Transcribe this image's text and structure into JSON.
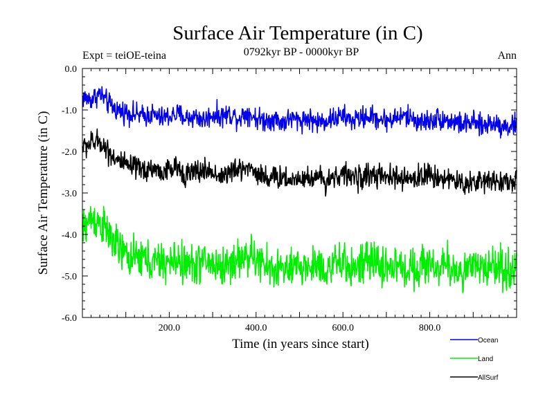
{
  "chart_data": {
    "type": "line",
    "title": "Surface Air Temperature (in C)",
    "subtitle": "0792kyr BP - 0000kyr BP",
    "left_label": "Expt = teiOE-teina",
    "right_label": "Ann",
    "xlabel": "Time (in years since start)",
    "ylabel": "Surface Air Temperature (in C)",
    "xlim": [
      0,
      1000
    ],
    "ylim": [
      -6.0,
      0.0
    ],
    "xticks": [
      200,
      400,
      600,
      800
    ],
    "xtick_labels": [
      "200.0",
      "400.0",
      "600.0",
      "800.0"
    ],
    "yticks": [
      0,
      -1,
      -2,
      -3,
      -4,
      -5,
      -6
    ],
    "ytick_labels": [
      "0.0",
      "-1.0",
      "-2.0",
      "-3.0",
      "-4.0",
      "-5.0",
      "-6.0"
    ],
    "legend_position": "bottom-right, below plot",
    "series": [
      {
        "name": "Ocean",
        "color": "#0000ee",
        "points_every_years": 20,
        "x": [
          0,
          20,
          40,
          60,
          80,
          100,
          120,
          140,
          160,
          180,
          200,
          220,
          240,
          260,
          280,
          300,
          320,
          340,
          360,
          380,
          400,
          420,
          440,
          460,
          480,
          500,
          520,
          540,
          560,
          580,
          600,
          620,
          640,
          660,
          680,
          700,
          720,
          740,
          760,
          780,
          800,
          820,
          840,
          860,
          880,
          900,
          920,
          940,
          960,
          980,
          1000
        ],
        "values": [
          -0.7,
          -0.75,
          -0.6,
          -0.85,
          -1.0,
          -1.05,
          -1.1,
          -1.15,
          -1.1,
          -1.2,
          -1.15,
          -1.1,
          -1.2,
          -1.15,
          -1.25,
          -1.1,
          -1.15,
          -1.1,
          -1.2,
          -1.05,
          -1.2,
          -1.25,
          -1.2,
          -1.3,
          -1.2,
          -1.25,
          -1.2,
          -1.3,
          -1.25,
          -1.2,
          -1.15,
          -1.25,
          -1.2,
          -1.15,
          -1.2,
          -1.25,
          -1.2,
          -1.15,
          -1.2,
          -1.3,
          -1.25,
          -1.2,
          -1.25,
          -1.3,
          -1.35,
          -1.3,
          -1.4,
          -1.3,
          -1.35,
          -1.4,
          -1.35
        ]
      },
      {
        "name": "Land",
        "color": "#00ee00",
        "points_every_years": 20,
        "x": [
          0,
          20,
          40,
          60,
          80,
          100,
          120,
          140,
          160,
          180,
          200,
          220,
          240,
          260,
          280,
          300,
          320,
          340,
          360,
          380,
          400,
          420,
          440,
          460,
          480,
          500,
          520,
          540,
          560,
          580,
          600,
          620,
          640,
          660,
          680,
          700,
          720,
          740,
          760,
          780,
          800,
          820,
          840,
          860,
          880,
          900,
          920,
          940,
          960,
          980,
          1000
        ],
        "values": [
          -3.9,
          -3.6,
          -3.7,
          -4.0,
          -4.3,
          -4.5,
          -4.6,
          -4.55,
          -4.7,
          -4.65,
          -4.7,
          -4.6,
          -4.75,
          -4.7,
          -4.65,
          -4.7,
          -4.8,
          -4.7,
          -4.6,
          -4.5,
          -4.6,
          -4.75,
          -4.85,
          -4.8,
          -4.9,
          -4.75,
          -4.8,
          -4.7,
          -4.85,
          -4.75,
          -4.7,
          -4.8,
          -4.75,
          -4.65,
          -4.7,
          -4.8,
          -4.75,
          -4.85,
          -4.8,
          -4.75,
          -4.7,
          -4.8,
          -4.75,
          -4.85,
          -4.9,
          -4.8,
          -4.85,
          -4.7,
          -4.8,
          -4.85,
          -4.8
        ]
      },
      {
        "name": "AllSurf",
        "color": "#000000",
        "points_every_years": 20,
        "x": [
          0,
          20,
          40,
          60,
          80,
          100,
          120,
          140,
          160,
          180,
          200,
          220,
          240,
          260,
          280,
          300,
          320,
          340,
          360,
          380,
          400,
          420,
          440,
          460,
          480,
          500,
          520,
          540,
          560,
          580,
          600,
          620,
          640,
          660,
          680,
          700,
          720,
          740,
          760,
          780,
          800,
          820,
          840,
          860,
          880,
          900,
          920,
          940,
          960,
          980,
          1000
        ],
        "values": [
          -1.9,
          -1.8,
          -1.75,
          -2.0,
          -2.2,
          -2.35,
          -2.4,
          -2.45,
          -2.4,
          -2.5,
          -2.45,
          -2.4,
          -2.55,
          -2.5,
          -2.45,
          -2.5,
          -2.6,
          -2.5,
          -2.45,
          -2.35,
          -2.5,
          -2.6,
          -2.65,
          -2.6,
          -2.7,
          -2.6,
          -2.65,
          -2.6,
          -2.7,
          -2.6,
          -2.55,
          -2.6,
          -2.65,
          -2.55,
          -2.6,
          -2.65,
          -2.6,
          -2.7,
          -2.65,
          -2.6,
          -2.55,
          -2.65,
          -2.6,
          -2.75,
          -2.8,
          -2.7,
          -2.75,
          -2.65,
          -2.7,
          -2.75,
          -2.7
        ]
      }
    ],
    "noise_amplitude": {
      "Ocean": 0.13,
      "Land": 0.24,
      "AllSurf": 0.14
    }
  }
}
